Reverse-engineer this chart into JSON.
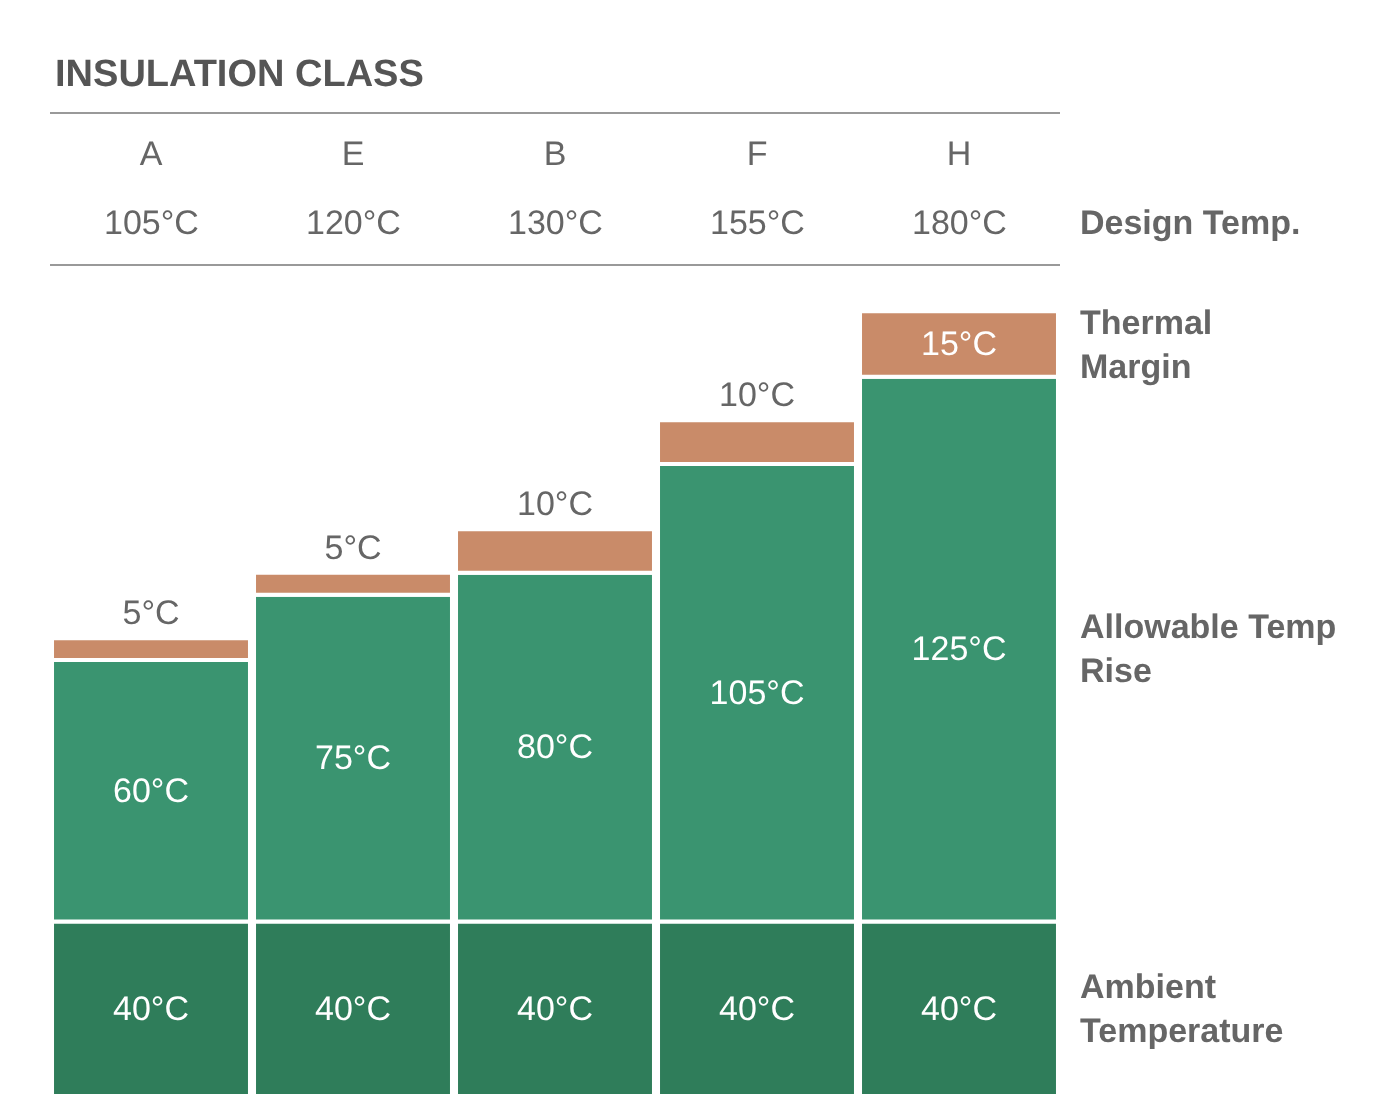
{
  "chart_data": {
    "type": "bar",
    "title": "INSULATION CLASS",
    "stacked": true,
    "categories": [
      "A",
      "E",
      "B",
      "F",
      "H"
    ],
    "series": [
      {
        "name": "Ambient Temperature",
        "color": "#2f7d5a",
        "values": [
          40,
          40,
          40,
          40,
          40
        ],
        "value_labels": [
          "40°C",
          "40°C",
          "40°C",
          "40°C",
          "40°C"
        ]
      },
      {
        "name": "Allowable Temp Rise",
        "color": "#3a9470",
        "values": [
          60,
          75,
          80,
          105,
          125
        ],
        "value_labels": [
          "60°C",
          "75°C",
          "80°C",
          "105°C",
          "125°C"
        ]
      },
      {
        "name": "Thermal Margin",
        "color": "#c98b69",
        "values": [
          5,
          5,
          10,
          10,
          15
        ],
        "value_labels": [
          "5°C",
          "5°C",
          "10°C",
          "10°C",
          "15°C"
        ]
      }
    ],
    "annotations": [
      "Design Temp.",
      "105°C",
      "120°C",
      "130°C",
      "155°C",
      "180°C"
    ],
    "legend": false,
    "grid": false
  }
}
